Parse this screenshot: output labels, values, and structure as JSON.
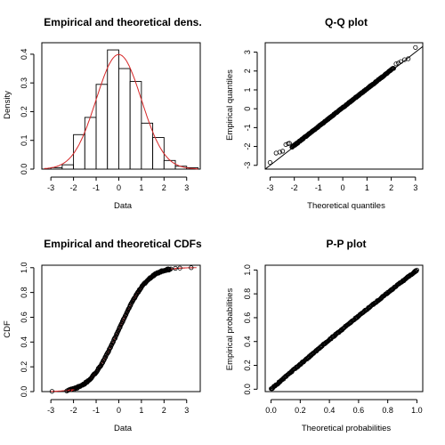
{
  "chart_data": [
    {
      "type": "histogram",
      "title": "Empirical and theoretical dens.",
      "xlabel": "Data",
      "ylabel": "Density",
      "xlim": [
        -3.4,
        3.6
      ],
      "ylim": [
        0,
        0.44
      ],
      "xticks": [
        -3,
        -2,
        -1,
        0,
        1,
        2,
        3
      ],
      "yticks": [
        0.0,
        0.1,
        0.2,
        0.3,
        0.4
      ],
      "bin_edges": [
        -3.0,
        -2.5,
        -2.0,
        -1.5,
        -1.0,
        -0.5,
        0.0,
        0.5,
        1.0,
        1.5,
        2.0,
        2.5,
        3.0,
        3.5
      ],
      "densities": [
        0.005,
        0.015,
        0.12,
        0.18,
        0.295,
        0.415,
        0.35,
        0.305,
        0.16,
        0.11,
        0.03,
        0.01,
        0.005
      ],
      "theoretical_curve": {
        "distribution": "normal",
        "mean": 0,
        "sd": 1,
        "color": "#d62728"
      }
    },
    {
      "type": "scatter",
      "title": "Q-Q plot",
      "xlabel": "Theoretical quantiles",
      "ylabel": "Empirical quantiles",
      "xlim": [
        -3.2,
        3.3
      ],
      "ylim": [
        -3.2,
        3.5
      ],
      "xticks": [
        -3,
        -2,
        -1,
        0,
        1,
        2,
        3
      ],
      "yticks": [
        -3,
        -2,
        -1,
        0,
        1,
        2,
        3
      ],
      "reference_line": {
        "slope": 1,
        "intercept": 0
      },
      "points": [
        [
          -3.0,
          -2.85
        ],
        [
          -2.75,
          -2.35
        ],
        [
          -2.6,
          -2.3
        ],
        [
          -2.48,
          -2.25
        ],
        [
          -2.35,
          -1.9
        ],
        [
          -2.25,
          -1.85
        ],
        [
          -2.2,
          -1.83
        ],
        [
          2.2,
          2.38
        ],
        [
          2.3,
          2.42
        ],
        [
          2.4,
          2.5
        ],
        [
          2.55,
          2.6
        ],
        [
          2.7,
          2.65
        ],
        [
          3.0,
          3.25
        ]
      ],
      "dense_band": {
        "from": -2.1,
        "to": 2.1
      }
    },
    {
      "type": "line",
      "title": "Empirical and theoretical CDFs",
      "xlabel": "Data",
      "ylabel": "CDF",
      "xlim": [
        -3.4,
        3.6
      ],
      "ylim": [
        0,
        1.02
      ],
      "xticks": [
        -3,
        -2,
        -1,
        0,
        1,
        2,
        3
      ],
      "yticks": [
        0.0,
        0.2,
        0.4,
        0.6,
        0.8,
        1.0
      ],
      "points": [
        [
          -2.95,
          0.002
        ],
        [
          -2.3,
          0.005
        ],
        [
          -2.25,
          0.01
        ],
        [
          -2.2,
          0.015
        ],
        [
          2.3,
          0.99
        ],
        [
          2.5,
          0.995
        ],
        [
          2.7,
          0.997
        ],
        [
          3.2,
          1.0
        ]
      ],
      "theoretical_curve": {
        "distribution": "normal",
        "mean": 0,
        "sd": 1,
        "color": "#d62728"
      }
    },
    {
      "type": "scatter",
      "title": "P-P plot",
      "xlabel": "Theoretical probabilities",
      "ylabel": "Empirical probabilities",
      "xlim": [
        -0.04,
        1.04
      ],
      "ylim": [
        -0.02,
        1.04
      ],
      "xticks": [
        0.0,
        0.2,
        0.4,
        0.6,
        0.8,
        1.0
      ],
      "yticks": [
        0.0,
        0.2,
        0.4,
        0.6,
        0.8,
        1.0
      ],
      "reference_line": {
        "slope": 1,
        "intercept": 0
      }
    }
  ]
}
